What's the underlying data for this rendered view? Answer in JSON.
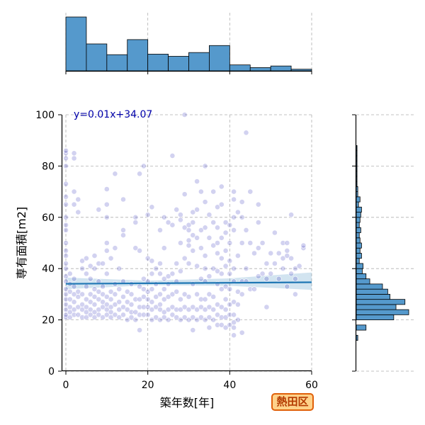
{
  "badge": "熱田区",
  "chart_data": {
    "type": "scatter",
    "xlabel": "築年数[年]",
    "ylabel": "専有面積[m2]",
    "xlim": [
      0,
      60
    ],
    "ylim": [
      0,
      100
    ],
    "x_ticks": [
      0,
      20,
      40,
      60
    ],
    "y_ticks": [
      0,
      20,
      40,
      60,
      80,
      100
    ],
    "grid": true,
    "point_color": "#3333bb",
    "regression": {
      "label": "y=0.01x+34.07",
      "slope": 0.01,
      "intercept": 34.07,
      "color": "#1f77b4",
      "ci_upper": [
        [
          0,
          36.5
        ],
        [
          20,
          35.3
        ],
        [
          40,
          36.2
        ],
        [
          60,
          38.5
        ]
      ],
      "ci_lower": [
        [
          0,
          32.0
        ],
        [
          20,
          33.5
        ],
        [
          40,
          33.3
        ],
        [
          60,
          31.7
        ]
      ]
    },
    "points": [
      [
        0,
        21
      ],
      [
        0,
        22
      ],
      [
        0,
        24
      ],
      [
        0,
        26
      ],
      [
        0,
        28
      ],
      [
        0,
        30
      ],
      [
        0,
        32
      ],
      [
        0,
        35
      ],
      [
        0,
        37
      ],
      [
        0,
        40
      ],
      [
        0,
        42
      ],
      [
        0,
        45
      ],
      [
        0,
        47
      ],
      [
        0,
        50
      ],
      [
        0,
        55
      ],
      [
        0,
        57
      ],
      [
        0,
        60
      ],
      [
        0,
        65
      ],
      [
        0,
        68
      ],
      [
        0,
        73
      ],
      [
        0,
        80
      ],
      [
        0,
        83
      ],
      [
        0,
        85
      ],
      [
        0,
        86
      ],
      [
        1,
        21
      ],
      [
        1,
        23
      ],
      [
        1,
        25
      ],
      [
        1,
        28
      ],
      [
        1,
        31
      ],
      [
        1,
        34
      ],
      [
        1,
        38
      ],
      [
        2,
        22
      ],
      [
        2,
        24
      ],
      [
        2,
        27
      ],
      [
        2,
        30
      ],
      [
        2,
        33
      ],
      [
        2,
        36
      ],
      [
        2,
        65
      ],
      [
        2,
        70
      ],
      [
        2,
        83
      ],
      [
        2,
        85
      ],
      [
        3,
        22
      ],
      [
        3,
        25
      ],
      [
        3,
        29
      ],
      [
        3,
        31
      ],
      [
        3,
        62
      ],
      [
        3,
        67
      ],
      [
        4,
        21
      ],
      [
        4,
        24
      ],
      [
        4,
        26
      ],
      [
        4,
        30
      ],
      [
        4,
        40
      ],
      [
        4,
        43
      ],
      [
        5,
        21
      ],
      [
        5,
        23
      ],
      [
        5,
        25
      ],
      [
        5,
        28
      ],
      [
        5,
        33
      ],
      [
        5,
        38
      ],
      [
        5,
        44
      ],
      [
        6,
        22
      ],
      [
        6,
        24
      ],
      [
        6,
        27
      ],
      [
        6,
        30
      ],
      [
        6,
        36
      ],
      [
        6,
        41
      ],
      [
        7,
        21
      ],
      [
        7,
        23
      ],
      [
        7,
        26
      ],
      [
        7,
        29
      ],
      [
        7,
        32
      ],
      [
        7,
        40
      ],
      [
        7,
        45
      ],
      [
        8,
        22
      ],
      [
        8,
        24
      ],
      [
        8,
        28
      ],
      [
        8,
        31
      ],
      [
        8,
        35
      ],
      [
        8,
        42
      ],
      [
        8,
        63
      ],
      [
        9,
        21
      ],
      [
        9,
        25
      ],
      [
        9,
        27
      ],
      [
        9,
        30
      ],
      [
        9,
        33
      ],
      [
        9,
        42
      ],
      [
        10,
        22
      ],
      [
        10,
        24
      ],
      [
        10,
        26
      ],
      [
        10,
        29
      ],
      [
        10,
        38
      ],
      [
        10,
        47
      ],
      [
        10,
        50
      ],
      [
        10,
        60
      ],
      [
        10,
        65
      ],
      [
        10,
        71
      ],
      [
        11,
        21
      ],
      [
        11,
        23
      ],
      [
        11,
        25
      ],
      [
        11,
        28
      ],
      [
        11,
        31
      ],
      [
        11,
        44
      ],
      [
        12,
        22
      ],
      [
        12,
        26
      ],
      [
        12,
        30
      ],
      [
        12,
        34
      ],
      [
        12,
        48
      ],
      [
        12,
        77
      ],
      [
        13,
        21
      ],
      [
        13,
        24
      ],
      [
        13,
        27
      ],
      [
        13,
        32
      ],
      [
        13,
        40
      ],
      [
        14,
        22
      ],
      [
        14,
        25
      ],
      [
        14,
        29
      ],
      [
        14,
        35
      ],
      [
        14,
        53
      ],
      [
        14,
        55
      ],
      [
        14,
        67
      ],
      [
        15,
        20
      ],
      [
        15,
        24
      ],
      [
        15,
        27
      ],
      [
        15,
        31
      ],
      [
        16,
        21
      ],
      [
        16,
        23
      ],
      [
        16,
        26
      ],
      [
        16,
        30
      ],
      [
        16,
        34
      ],
      [
        17,
        20
      ],
      [
        17,
        23
      ],
      [
        17,
        28
      ],
      [
        17,
        48
      ],
      [
        17,
        58
      ],
      [
        17,
        60
      ],
      [
        18,
        16
      ],
      [
        18,
        22
      ],
      [
        18,
        25
      ],
      [
        18,
        28
      ],
      [
        18,
        33
      ],
      [
        18,
        47
      ],
      [
        18,
        77
      ],
      [
        19,
        22
      ],
      [
        19,
        25
      ],
      [
        19,
        29
      ],
      [
        19,
        32
      ],
      [
        19,
        36
      ],
      [
        19,
        80
      ],
      [
        20,
        22
      ],
      [
        20,
        25
      ],
      [
        20,
        28
      ],
      [
        20,
        31
      ],
      [
        20,
        35
      ],
      [
        20,
        44
      ],
      [
        20,
        61
      ],
      [
        21,
        20
      ],
      [
        21,
        24
      ],
      [
        21,
        27
      ],
      [
        21,
        32
      ],
      [
        21,
        38
      ],
      [
        21,
        43
      ],
      [
        21,
        64
      ],
      [
        22,
        21
      ],
      [
        22,
        25
      ],
      [
        22,
        29
      ],
      [
        22,
        34
      ],
      [
        22,
        40
      ],
      [
        23,
        20
      ],
      [
        23,
        24
      ],
      [
        23,
        26
      ],
      [
        23,
        30
      ],
      [
        23,
        38
      ],
      [
        23,
        42
      ],
      [
        23,
        55
      ],
      [
        24,
        21
      ],
      [
        24,
        23
      ],
      [
        24,
        28
      ],
      [
        24,
        32
      ],
      [
        24,
        36
      ],
      [
        24,
        48
      ],
      [
        24,
        60
      ],
      [
        25,
        20
      ],
      [
        25,
        24
      ],
      [
        25,
        29
      ],
      [
        25,
        34
      ],
      [
        25,
        37
      ],
      [
        25,
        58
      ],
      [
        26,
        22
      ],
      [
        26,
        25
      ],
      [
        26,
        30
      ],
      [
        26,
        38
      ],
      [
        26,
        57
      ],
      [
        26,
        84
      ],
      [
        27,
        21
      ],
      [
        27,
        24
      ],
      [
        27,
        31
      ],
      [
        27,
        35
      ],
      [
        27,
        42
      ],
      [
        27,
        63
      ],
      [
        28,
        20
      ],
      [
        28,
        24
      ],
      [
        28,
        28
      ],
      [
        28,
        39
      ],
      [
        28,
        50
      ],
      [
        28,
        59
      ],
      [
        28,
        61
      ],
      [
        29,
        21
      ],
      [
        29,
        25
      ],
      [
        29,
        30
      ],
      [
        29,
        44
      ],
      [
        29,
        56
      ],
      [
        29,
        69
      ],
      [
        29,
        100
      ],
      [
        30,
        20
      ],
      [
        30,
        24
      ],
      [
        30,
        29
      ],
      [
        30,
        42
      ],
      [
        30,
        49
      ],
      [
        30,
        51
      ],
      [
        30,
        55
      ],
      [
        30,
        57
      ],
      [
        31,
        16
      ],
      [
        31,
        21
      ],
      [
        31,
        25
      ],
      [
        31,
        34
      ],
      [
        31,
        47
      ],
      [
        31,
        53
      ],
      [
        31,
        58
      ],
      [
        31,
        62
      ],
      [
        32,
        20
      ],
      [
        32,
        24
      ],
      [
        32,
        30
      ],
      [
        32,
        41
      ],
      [
        32,
        52
      ],
      [
        32,
        63
      ],
      [
        32,
        74
      ],
      [
        33,
        21
      ],
      [
        33,
        25
      ],
      [
        33,
        28
      ],
      [
        33,
        36
      ],
      [
        33,
        48
      ],
      [
        33,
        55
      ],
      [
        33,
        70
      ],
      [
        34,
        20
      ],
      [
        34,
        24
      ],
      [
        34,
        28
      ],
      [
        34,
        35
      ],
      [
        34,
        40
      ],
      [
        34,
        45
      ],
      [
        34,
        56
      ],
      [
        34,
        66
      ],
      [
        34,
        80
      ],
      [
        35,
        17
      ],
      [
        35,
        21
      ],
      [
        35,
        25
      ],
      [
        35,
        30
      ],
      [
        35,
        37
      ],
      [
        35,
        52
      ],
      [
        35,
        61
      ],
      [
        36,
        20
      ],
      [
        36,
        24
      ],
      [
        36,
        29
      ],
      [
        36,
        40
      ],
      [
        36,
        49
      ],
      [
        36,
        58
      ],
      [
        36,
        70
      ],
      [
        37,
        18
      ],
      [
        37,
        22
      ],
      [
        37,
        26
      ],
      [
        37,
        34
      ],
      [
        37,
        39
      ],
      [
        37,
        46
      ],
      [
        37,
        50
      ],
      [
        37,
        56
      ],
      [
        37,
        64
      ],
      [
        38,
        18
      ],
      [
        38,
        21
      ],
      [
        38,
        25
      ],
      [
        38,
        32
      ],
      [
        38,
        38
      ],
      [
        38,
        44
      ],
      [
        38,
        52
      ],
      [
        38,
        65
      ],
      [
        38,
        72
      ],
      [
        39,
        17
      ],
      [
        39,
        21
      ],
      [
        39,
        24
      ],
      [
        39,
        28
      ],
      [
        39,
        33
      ],
      [
        39,
        41
      ],
      [
        39,
        47
      ],
      [
        39,
        54
      ],
      [
        39,
        58
      ],
      [
        40,
        18
      ],
      [
        40,
        22
      ],
      [
        40,
        26
      ],
      [
        40,
        32
      ],
      [
        40,
        38
      ],
      [
        40,
        43
      ],
      [
        40,
        50
      ],
      [
        40,
        57
      ],
      [
        41,
        14
      ],
      [
        41,
        17
      ],
      [
        41,
        19
      ],
      [
        41,
        22
      ],
      [
        41,
        27
      ],
      [
        41,
        35
      ],
      [
        41,
        40
      ],
      [
        41,
        55
      ],
      [
        41,
        60
      ],
      [
        41,
        67
      ],
      [
        41,
        70
      ],
      [
        42,
        20
      ],
      [
        42,
        26
      ],
      [
        42,
        31
      ],
      [
        42,
        45
      ],
      [
        42,
        62
      ],
      [
        43,
        15
      ],
      [
        43,
        30
      ],
      [
        43,
        35
      ],
      [
        43,
        50
      ],
      [
        43,
        60
      ],
      [
        43,
        66
      ],
      [
        44,
        35
      ],
      [
        44,
        40
      ],
      [
        44,
        55
      ],
      [
        44,
        93
      ],
      [
        45,
        32
      ],
      [
        45,
        50
      ],
      [
        45,
        70
      ],
      [
        46,
        32
      ],
      [
        46,
        46
      ],
      [
        47,
        37
      ],
      [
        47,
        48
      ],
      [
        47,
        58
      ],
      [
        47,
        65
      ],
      [
        48,
        38
      ],
      [
        48,
        50
      ],
      [
        49,
        25
      ],
      [
        49,
        36
      ],
      [
        49,
        42
      ],
      [
        50,
        38
      ],
      [
        50,
        46
      ],
      [
        51,
        42
      ],
      [
        51,
        54
      ],
      [
        52,
        36
      ],
      [
        52,
        46
      ],
      [
        53,
        40
      ],
      [
        53,
        44
      ],
      [
        53,
        50
      ],
      [
        54,
        33
      ],
      [
        54,
        45
      ],
      [
        54,
        47
      ],
      [
        54,
        50
      ],
      [
        55,
        38
      ],
      [
        55,
        44
      ],
      [
        55,
        61
      ],
      [
        56,
        30
      ],
      [
        56,
        36
      ],
      [
        56,
        40
      ],
      [
        57,
        41
      ],
      [
        58,
        48
      ],
      [
        58,
        49
      ]
    ],
    "top_histogram": {
      "axis": "築年数[年]",
      "bin_edges": [
        0,
        5,
        10,
        15,
        20,
        25,
        30,
        35,
        40,
        45,
        50,
        55,
        60
      ],
      "counts": [
        100,
        50,
        30,
        58,
        31,
        27,
        34,
        47,
        11,
        6,
        9,
        3
      ],
      "color": "#5599cc"
    },
    "right_histogram": {
      "axis": "専有面積[m2]",
      "bin_edges": [
        12,
        14,
        16,
        18,
        20,
        22,
        24,
        26,
        28,
        30,
        32,
        34,
        36,
        38,
        40,
        42,
        44,
        46,
        48,
        50,
        52,
        54,
        56,
        58,
        60,
        62,
        64,
        66,
        68,
        70,
        72,
        74,
        76,
        78,
        80,
        82,
        84,
        86,
        88,
        90,
        92,
        94,
        96,
        98,
        100
      ],
      "counts": [
        2,
        0,
        13,
        0,
        50,
        70,
        53,
        65,
        45,
        42,
        35,
        18,
        13,
        8,
        9,
        4,
        7,
        5,
        7,
        5,
        4,
        6,
        4,
        5,
        6,
        7,
        3,
        5,
        2,
        2,
        1,
        1,
        1,
        1,
        1,
        1,
        1,
        1,
        0,
        0,
        0,
        0,
        0,
        0
      ],
      "color": "#5599cc"
    }
  }
}
